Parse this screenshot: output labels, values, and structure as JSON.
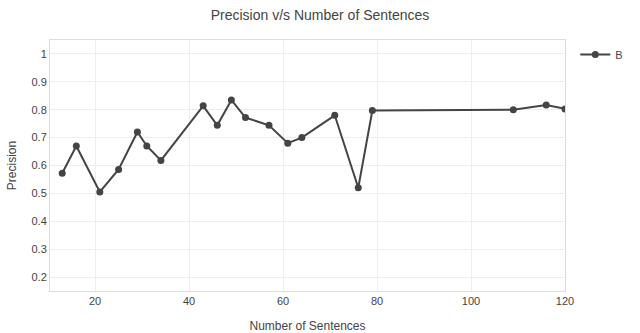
{
  "chart_data": {
    "type": "line",
    "title": "Precision v/s Number of Sentences",
    "x_label": "Number of Sentences",
    "y_label": "Precision",
    "x": [
      13,
      16,
      21,
      25,
      29,
      31,
      34,
      43,
      46,
      49,
      52,
      57,
      61,
      64,
      71,
      76,
      79,
      109,
      116,
      120
    ],
    "series": [
      {
        "name": "B",
        "color": "#444444",
        "marker": "circle",
        "line_style": "solid",
        "values": [
          0.572,
          0.67,
          0.505,
          0.586,
          0.72,
          0.67,
          0.618,
          0.814,
          0.744,
          0.835,
          0.772,
          0.744,
          0.68,
          0.7,
          0.78,
          0.52,
          0.797,
          0.8,
          0.817,
          0.803
        ]
      }
    ],
    "xlim": [
      10.4,
      120
    ],
    "ylim": [
      0.15,
      1.05
    ],
    "xticks": [
      20,
      40,
      60,
      80,
      100,
      120
    ],
    "yticks": [
      0.2,
      0.3,
      0.4,
      0.5,
      0.6,
      0.7,
      0.8,
      0.9,
      1
    ],
    "grid": true,
    "legend": "top right"
  }
}
